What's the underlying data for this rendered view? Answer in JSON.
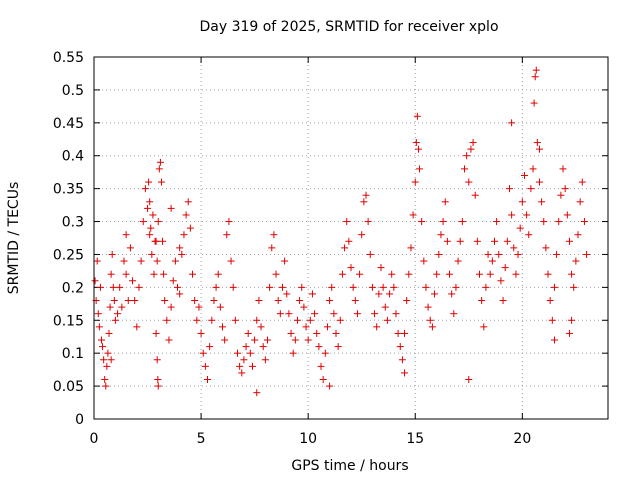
{
  "chart_data": {
    "type": "scatter",
    "title": "Day 319 of 2025, SRMTID for receiver xplo",
    "xlabel": "GPS time / hours",
    "ylabel": "SRMTID / TECUs",
    "xlim": [
      0,
      24
    ],
    "ylim": [
      0,
      0.55
    ],
    "xticks": [
      "0",
      "5",
      "10",
      "15",
      "20"
    ],
    "yticks": [
      "0",
      "0.05",
      "0.1",
      "0.15",
      "0.2",
      "0.25",
      "0.3",
      "0.35",
      "0.4",
      "0.45",
      "0.5",
      "0.55"
    ],
    "grid": true,
    "marker": "+",
    "color": "#e00000",
    "series": [
      {
        "points": [
          [
            0.05,
            0.21
          ],
          [
            0.1,
            0.18
          ],
          [
            0.15,
            0.24
          ],
          [
            0.2,
            0.16
          ],
          [
            0.25,
            0.14
          ],
          [
            0.3,
            0.2
          ],
          [
            0.35,
            0.12
          ],
          [
            0.4,
            0.11
          ],
          [
            0.45,
            0.09
          ],
          [
            0.5,
            0.06
          ],
          [
            0.55,
            0.05
          ],
          [
            0.6,
            0.08
          ],
          [
            0.65,
            0.1
          ],
          [
            0.7,
            0.13
          ],
          [
            0.75,
            0.17
          ],
          [
            0.8,
            0.22
          ],
          [
            0.85,
            0.25
          ],
          [
            0.9,
            0.2
          ],
          [
            0.95,
            0.18
          ],
          [
            1.0,
            0.15
          ],
          [
            1.1,
            0.16
          ],
          [
            1.2,
            0.2
          ],
          [
            1.3,
            0.17
          ],
          [
            1.4,
            0.24
          ],
          [
            1.5,
            0.22
          ],
          [
            1.6,
            0.18
          ],
          [
            1.7,
            0.26
          ],
          [
            1.8,
            0.21
          ],
          [
            1.9,
            0.18
          ],
          [
            2.0,
            0.14
          ],
          [
            2.1,
            0.2
          ],
          [
            2.2,
            0.24
          ],
          [
            2.3,
            0.3
          ],
          [
            2.4,
            0.35
          ],
          [
            2.5,
            0.32
          ],
          [
            2.6,
            0.28
          ],
          [
            2.7,
            0.25
          ],
          [
            2.8,
            0.22
          ],
          [
            2.9,
            0.27
          ],
          [
            3.0,
            0.3
          ],
          [
            2.55,
            0.36
          ],
          [
            2.6,
            0.33
          ],
          [
            2.65,
            0.29
          ],
          [
            2.75,
            0.31
          ],
          [
            2.85,
            0.27
          ],
          [
            2.95,
            0.24
          ],
          [
            2.9,
            0.13
          ],
          [
            2.95,
            0.09
          ],
          [
            2.98,
            0.06
          ],
          [
            3.0,
            0.05
          ],
          [
            3.05,
            0.38
          ],
          [
            3.1,
            0.39
          ],
          [
            3.15,
            0.36
          ],
          [
            3.2,
            0.27
          ],
          [
            3.25,
            0.22
          ],
          [
            3.3,
            0.18
          ],
          [
            3.4,
            0.15
          ],
          [
            3.5,
            0.12
          ],
          [
            3.6,
            0.17
          ],
          [
            3.7,
            0.21
          ],
          [
            3.8,
            0.24
          ],
          [
            3.9,
            0.2
          ],
          [
            4.0,
            0.19
          ],
          [
            4.1,
            0.25
          ],
          [
            4.2,
            0.28
          ],
          [
            4.3,
            0.31
          ],
          [
            4.4,
            0.33
          ],
          [
            4.5,
            0.29
          ],
          [
            4.6,
            0.22
          ],
          [
            4.7,
            0.18
          ],
          [
            4.8,
            0.15
          ],
          [
            4.9,
            0.17
          ],
          [
            5.0,
            0.13
          ],
          [
            5.1,
            0.1
          ],
          [
            5.2,
            0.08
          ],
          [
            5.3,
            0.06
          ],
          [
            5.4,
            0.11
          ],
          [
            5.5,
            0.15
          ],
          [
            5.6,
            0.18
          ],
          [
            5.7,
            0.2
          ],
          [
            5.8,
            0.22
          ],
          [
            5.9,
            0.17
          ],
          [
            6.0,
            0.14
          ],
          [
            6.1,
            0.12
          ],
          [
            6.2,
            0.28
          ],
          [
            6.3,
            0.3
          ],
          [
            6.4,
            0.24
          ],
          [
            6.5,
            0.2
          ],
          [
            6.6,
            0.15
          ],
          [
            6.7,
            0.1
          ],
          [
            6.8,
            0.08
          ],
          [
            6.9,
            0.07
          ],
          [
            7.0,
            0.09
          ],
          [
            7.1,
            0.11
          ],
          [
            7.2,
            0.13
          ],
          [
            7.3,
            0.1
          ],
          [
            7.4,
            0.08
          ],
          [
            7.5,
            0.12
          ],
          [
            7.6,
            0.15
          ],
          [
            7.7,
            0.18
          ],
          [
            7.8,
            0.14
          ],
          [
            7.9,
            0.11
          ],
          [
            8.0,
            0.09
          ],
          [
            8.1,
            0.12
          ],
          [
            8.2,
            0.2
          ],
          [
            8.3,
            0.26
          ],
          [
            8.4,
            0.28
          ],
          [
            8.5,
            0.22
          ],
          [
            8.6,
            0.18
          ],
          [
            8.7,
            0.16
          ],
          [
            8.8,
            0.2
          ],
          [
            8.9,
            0.24
          ],
          [
            9.0,
            0.19
          ],
          [
            9.1,
            0.16
          ],
          [
            9.2,
            0.13
          ],
          [
            9.3,
            0.1
          ],
          [
            9.4,
            0.12
          ],
          [
            9.5,
            0.15
          ],
          [
            9.6,
            0.18
          ],
          [
            9.7,
            0.2
          ],
          [
            9.8,
            0.17
          ],
          [
            9.9,
            0.14
          ],
          [
            10.0,
            0.12
          ],
          [
            10.1,
            0.15
          ],
          [
            10.2,
            0.19
          ],
          [
            10.3,
            0.16
          ],
          [
            10.4,
            0.13
          ],
          [
            10.5,
            0.11
          ],
          [
            10.6,
            0.08
          ],
          [
            10.7,
            0.06
          ],
          [
            10.8,
            0.1
          ],
          [
            10.9,
            0.14
          ],
          [
            11.0,
            0.18
          ],
          [
            11.1,
            0.2
          ],
          [
            11.2,
            0.16
          ],
          [
            11.3,
            0.13
          ],
          [
            11.4,
            0.11
          ],
          [
            11.5,
            0.15
          ],
          [
            11.6,
            0.22
          ],
          [
            11.7,
            0.26
          ],
          [
            11.8,
            0.3
          ],
          [
            11.9,
            0.27
          ],
          [
            12.0,
            0.23
          ],
          [
            12.1,
            0.2
          ],
          [
            12.2,
            0.18
          ],
          [
            12.3,
            0.16
          ],
          [
            12.4,
            0.22
          ],
          [
            12.5,
            0.28
          ],
          [
            12.6,
            0.33
          ],
          [
            12.7,
            0.34
          ],
          [
            12.8,
            0.3
          ],
          [
            12.9,
            0.25
          ],
          [
            13.0,
            0.2
          ],
          [
            13.1,
            0.16
          ],
          [
            13.2,
            0.14
          ],
          [
            13.3,
            0.19
          ],
          [
            13.4,
            0.23
          ],
          [
            13.5,
            0.2
          ],
          [
            13.6,
            0.17
          ],
          [
            13.7,
            0.15
          ],
          [
            13.8,
            0.19
          ],
          [
            13.9,
            0.22
          ],
          [
            14.0,
            0.2
          ],
          [
            14.1,
            0.16
          ],
          [
            14.2,
            0.13
          ],
          [
            14.3,
            0.11
          ],
          [
            14.4,
            0.09
          ],
          [
            14.5,
            0.13
          ],
          [
            14.6,
            0.18
          ],
          [
            14.7,
            0.22
          ],
          [
            14.8,
            0.26
          ],
          [
            14.9,
            0.31
          ],
          [
            15.0,
            0.36
          ],
          [
            15.05,
            0.42
          ],
          [
            15.1,
            0.46
          ],
          [
            15.15,
            0.41
          ],
          [
            15.2,
            0.38
          ],
          [
            15.3,
            0.3
          ],
          [
            15.4,
            0.24
          ],
          [
            15.5,
            0.2
          ],
          [
            15.6,
            0.17
          ],
          [
            15.7,
            0.15
          ],
          [
            15.8,
            0.14
          ],
          [
            15.9,
            0.19
          ],
          [
            16.0,
            0.22
          ],
          [
            16.1,
            0.25
          ],
          [
            16.2,
            0.28
          ],
          [
            16.3,
            0.3
          ],
          [
            16.4,
            0.33
          ],
          [
            16.5,
            0.27
          ],
          [
            16.6,
            0.22
          ],
          [
            16.7,
            0.19
          ],
          [
            16.8,
            0.16
          ],
          [
            16.9,
            0.2
          ],
          [
            17.0,
            0.24
          ],
          [
            17.1,
            0.27
          ],
          [
            17.2,
            0.3
          ],
          [
            17.3,
            0.38
          ],
          [
            17.4,
            0.4
          ],
          [
            17.5,
            0.36
          ],
          [
            17.6,
            0.41
          ],
          [
            17.7,
            0.42
          ],
          [
            17.8,
            0.34
          ],
          [
            17.9,
            0.27
          ],
          [
            18.0,
            0.22
          ],
          [
            18.1,
            0.18
          ],
          [
            18.2,
            0.14
          ],
          [
            18.3,
            0.2
          ],
          [
            18.4,
            0.25
          ],
          [
            18.5,
            0.22
          ],
          [
            18.6,
            0.24
          ],
          [
            18.7,
            0.27
          ],
          [
            18.8,
            0.3
          ],
          [
            18.9,
            0.25
          ],
          [
            19.0,
            0.21
          ],
          [
            19.1,
            0.18
          ],
          [
            19.2,
            0.23
          ],
          [
            19.3,
            0.27
          ],
          [
            19.4,
            0.35
          ],
          [
            19.5,
            0.31
          ],
          [
            19.6,
            0.26
          ],
          [
            19.7,
            0.22
          ],
          [
            19.8,
            0.25
          ],
          [
            19.9,
            0.29
          ],
          [
            20.0,
            0.33
          ],
          [
            20.1,
            0.37
          ],
          [
            20.2,
            0.31
          ],
          [
            20.3,
            0.28
          ],
          [
            20.4,
            0.35
          ],
          [
            20.5,
            0.38
          ],
          [
            20.55,
            0.48
          ],
          [
            20.6,
            0.52
          ],
          [
            20.65,
            0.53
          ],
          [
            20.7,
            0.42
          ],
          [
            20.8,
            0.36
          ],
          [
            20.9,
            0.33
          ],
          [
            21.0,
            0.3
          ],
          [
            21.1,
            0.26
          ],
          [
            21.2,
            0.22
          ],
          [
            21.3,
            0.18
          ],
          [
            21.4,
            0.15
          ],
          [
            21.5,
            0.2
          ],
          [
            21.6,
            0.25
          ],
          [
            21.7,
            0.3
          ],
          [
            21.8,
            0.34
          ],
          [
            21.9,
            0.38
          ],
          [
            22.0,
            0.35
          ],
          [
            22.1,
            0.31
          ],
          [
            22.2,
            0.27
          ],
          [
            22.3,
            0.22
          ],
          [
            22.4,
            0.2
          ],
          [
            22.5,
            0.24
          ],
          [
            22.6,
            0.28
          ],
          [
            22.7,
            0.33
          ],
          [
            22.8,
            0.36
          ],
          [
            22.9,
            0.3
          ],
          [
            23.0,
            0.25
          ],
          [
            22.2,
            0.13
          ],
          [
            22.3,
            0.15
          ],
          [
            21.5,
            0.12
          ],
          [
            7.6,
            0.04
          ],
          [
            3.6,
            0.32
          ],
          [
            4.0,
            0.26
          ],
          [
            1.5,
            0.28
          ],
          [
            0.8,
            0.09
          ],
          [
            11.0,
            0.05
          ],
          [
            14.5,
            0.07
          ],
          [
            17.5,
            0.06
          ],
          [
            19.5,
            0.45
          ],
          [
            20.8,
            0.41
          ]
        ]
      }
    ]
  }
}
